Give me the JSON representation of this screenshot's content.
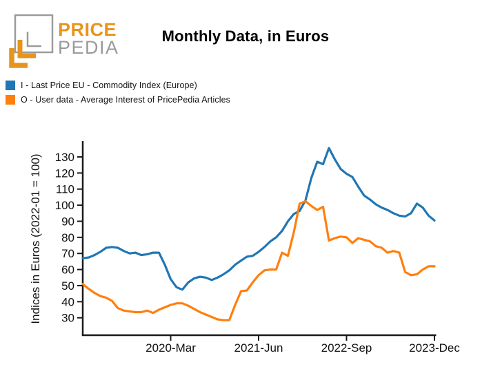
{
  "logo": {
    "line1": "PRICE",
    "line2": "PEDIA",
    "orange": "#e8941c",
    "gray": "#9a9a9a"
  },
  "chart_data": {
    "type": "line",
    "title": "Monthly Data, in Euros",
    "ylabel": "Indices in Euros (2022-01 = 100)",
    "xlabel": "",
    "grid": "off",
    "legend_position": "top-left-above-plot",
    "axis_color": "#1a1a1a",
    "ylim": [
      25,
      140
    ],
    "y_ticks": [
      30,
      40,
      50,
      60,
      70,
      80,
      90,
      100,
      110,
      120,
      130
    ],
    "x_range": {
      "start": "2018-12",
      "end": "2023-12",
      "interval": "month",
      "points": 61
    },
    "x_ticks": [
      {
        "label": "2020-Mar",
        "index": 15
      },
      {
        "label": "2021-Jun",
        "index": 30
      },
      {
        "label": "2022-Sep",
        "index": 45
      },
      {
        "label": "2023-Dec",
        "index": 60
      }
    ],
    "series": [
      {
        "id": "I",
        "name": "I - Last Price EU - Commodity Index (Europe)",
        "color": "#1f77b4",
        "values": [
          67,
          67.5,
          69,
          71,
          73.5,
          74,
          73.5,
          71.5,
          70,
          70.5,
          69,
          69.5,
          70.5,
          70.5,
          63,
          54,
          49,
          47.5,
          52,
          54.5,
          55.5,
          55,
          53.5,
          55,
          57,
          59.5,
          63,
          65.5,
          68,
          68.5,
          71,
          74,
          77.5,
          80,
          84,
          90,
          94.5,
          96.5,
          103,
          117,
          127,
          125.5,
          135.5,
          128.5,
          122.5,
          119.5,
          117.5,
          111.5,
          106,
          103.5,
          100.5,
          98.5,
          97,
          95,
          93.5,
          93,
          95,
          101,
          98.5,
          93.5,
          90.5
        ]
      },
      {
        "id": "O",
        "name": "O - User data - Average Interest of PricePedia Articles",
        "color": "#ff7f0e",
        "values": [
          51,
          48,
          45.5,
          43.5,
          42.5,
          40.5,
          36,
          34.5,
          34,
          33.5,
          33.5,
          34.5,
          33,
          35,
          36.5,
          38,
          39,
          39,
          37.5,
          35.5,
          33.5,
          32,
          30.5,
          29,
          28.5,
          28.5,
          38,
          46.5,
          47,
          52,
          56.5,
          59.5,
          60,
          60,
          70.5,
          68.5,
          83,
          101,
          102.5,
          99.5,
          97,
          99,
          78,
          79.5,
          80.5,
          80,
          76.5,
          79.5,
          78.5,
          77.5,
          74.5,
          73.5,
          70.5,
          71.5,
          70.5,
          58.5,
          56.5,
          57,
          60,
          62,
          62
        ]
      }
    ]
  }
}
